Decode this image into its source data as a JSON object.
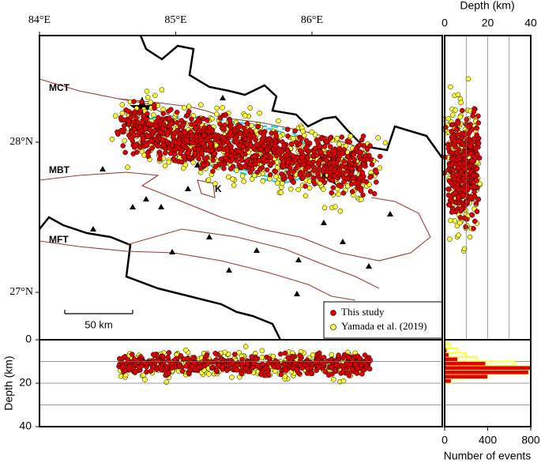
{
  "map": {
    "lon_ticks": [
      {
        "value": 84,
        "label": "84°E"
      },
      {
        "value": 85,
        "label": "85°E"
      },
      {
        "value": 86,
        "label": "86°E"
      }
    ],
    "lat_ticks": [
      {
        "value": 28,
        "label": "28°N"
      },
      {
        "value": 27,
        "label": "27°N"
      }
    ],
    "labels": {
      "mct": "MCT",
      "mbt": "MBT",
      "mft": "MFT",
      "k": "K"
    },
    "scale_bar": "50 km",
    "legend": [
      {
        "name": "This study",
        "color": "#e00000"
      },
      {
        "name": "Yamada et al. (2019)",
        "color": "#ffff33"
      }
    ]
  },
  "depth_panel": {
    "title": "Depth (km)",
    "xlim": [
      0,
      40
    ],
    "xticks": [
      0,
      20,
      40
    ],
    "grid": [
      10,
      20,
      30
    ]
  },
  "bottom_panel": {
    "ylabel": "Depth (km)",
    "ylim": [
      0,
      40
    ],
    "yticks": [
      0,
      20,
      40
    ],
    "grid": [
      10,
      20,
      30
    ]
  },
  "histogram": {
    "xlabel": "Number of events",
    "xlim": [
      0,
      800
    ],
    "xticks": [
      0,
      400,
      800
    ],
    "bins": [
      0,
      2,
      4,
      6,
      8,
      10,
      12,
      14,
      16,
      18,
      20
    ],
    "series": [
      {
        "color": "#ffff33",
        "values": [
          20,
          50,
          120,
          200,
          300,
          650,
          580,
          400,
          180,
          30
        ]
      },
      {
        "color": "#e00000",
        "values": [
          5,
          10,
          20,
          40,
          120,
          380,
          800,
          780,
          400,
          60
        ]
      }
    ]
  }
}
